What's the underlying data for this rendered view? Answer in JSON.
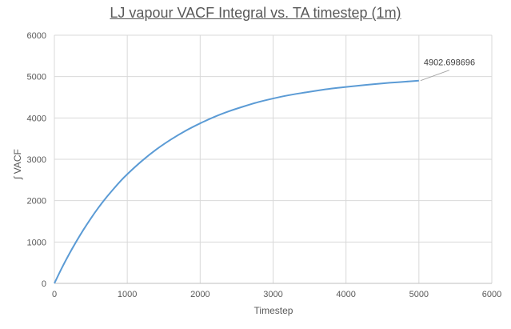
{
  "chart_data": {
    "type": "line",
    "title": "LJ vapour VACF Integral vs. TA timestep (1m)",
    "xlabel": "Timestep",
    "ylabel": "∫ VACF",
    "xlim": [
      0,
      6000
    ],
    "ylim": [
      0,
      6000
    ],
    "xticks": [
      0,
      1000,
      2000,
      3000,
      4000,
      5000,
      6000
    ],
    "yticks": [
      0,
      1000,
      2000,
      3000,
      4000,
      5000,
      6000
    ],
    "grid": true,
    "legend": "none",
    "series": [
      {
        "color": "#5B9BD5",
        "x": [
          0,
          100,
          200,
          300,
          400,
          500,
          600,
          700,
          800,
          900,
          1000,
          1200,
          1400,
          1600,
          1800,
          2000,
          2200,
          2400,
          2600,
          2800,
          3000,
          3200,
          3400,
          3600,
          3800,
          4000,
          4200,
          4400,
          4600,
          4800,
          5000
        ],
        "y": [
          0,
          365,
          700,
          1010,
          1300,
          1570,
          1820,
          2050,
          2260,
          2460,
          2640,
          2960,
          3240,
          3480,
          3690,
          3870,
          4030,
          4165,
          4280,
          4385,
          4470,
          4545,
          4605,
          4660,
          4710,
          4750,
          4785,
          4820,
          4850,
          4875,
          4902.698696
        ]
      }
    ],
    "annotations": [
      {
        "text": "4902.698696",
        "x": 5000,
        "y": 4902.698696
      }
    ]
  }
}
